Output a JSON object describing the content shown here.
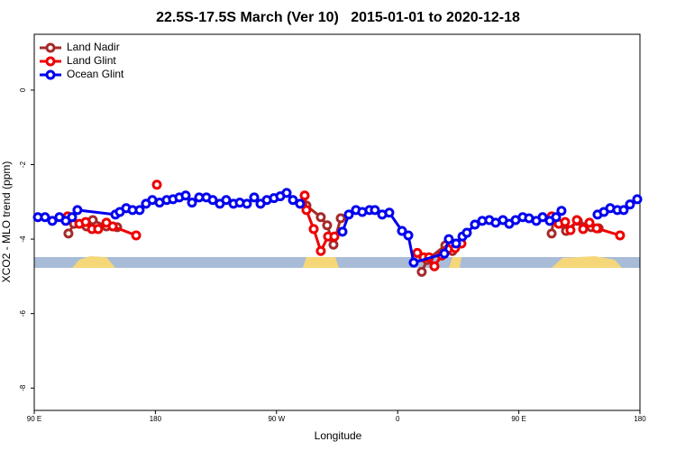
{
  "chart_data": {
    "type": "line",
    "title": "22.5S-17.5S March (Ver 10)   2015-01-01 to 2020-12-18",
    "x_label": "Longitude",
    "y_label": "XCO2 - MLO trend (ppm)",
    "xlim": [
      90,
      540
    ],
    "ylim": [
      -8.6,
      1.5
    ],
    "xticks": [
      {
        "value": 90,
        "label": "90 E"
      },
      180,
      {
        "value": 270,
        "label": "90 W"
      },
      {
        "value": 360,
        "label": "0"
      },
      {
        "value": 450,
        "label": "90 E"
      },
      {
        "value": 540,
        "label": "180"
      }
    ],
    "yticks": [
      0,
      -2,
      -4,
      -6,
      -8
    ],
    "legend": "top-left",
    "series": [
      {
        "name": "Land Nadir",
        "color": "#a52a2a",
        "x": [
          115.4,
          119.5,
          128.8,
          133.5,
          143.6,
          151.6,
          null,
          292.2,
          302.9,
          307.6,
          312.3,
          317.7,
          null,
          377.9,
          381.9,
          395.4,
          400.7,
          null,
          474.4,
          475.7,
          485.1,
          493.8,
          503.8,
          509.3
        ],
        "values": [
          -3.85,
          -3.59,
          -3.66,
          -3.49,
          -3.66,
          -3.68,
          null,
          -3.1,
          -3.41,
          -3.63,
          -4.15,
          -3.44,
          null,
          -4.88,
          -4.56,
          -4.17,
          -4.32,
          null,
          -3.85,
          -3.49,
          -3.78,
          -3.51,
          -3.68,
          -3.71
        ]
      },
      {
        "name": "Land Glint",
        "color": "#ee0000",
        "x": [
          114.8,
          123.5,
          128.2,
          132.9,
          137.5,
          143.6,
          148.3,
          165.7,
          null,
          181.1,
          null,
          290.9,
          292.2,
          297.6,
          302.9,
          308.3,
          313.0,
          null,
          374.6,
          379.3,
          383.3,
          387.3,
          392.7,
          397.3,
          402.7,
          407.4,
          null,
          474.4,
          479.7,
          484.4,
          488.4,
          493.1,
          497.8,
          502.5,
          507.8,
          525.2
        ],
        "values": [
          -3.39,
          -3.59,
          -3.54,
          -3.73,
          -3.73,
          -3.56,
          -3.66,
          -3.9,
          null,
          -2.54,
          null,
          -2.83,
          -3.22,
          -3.73,
          -4.32,
          -3.93,
          -3.93,
          null,
          -4.37,
          -4.49,
          -4.49,
          -4.73,
          -4.44,
          -4.27,
          -4.24,
          -4.12,
          null,
          -3.39,
          -3.59,
          -3.54,
          -3.76,
          -3.49,
          -3.73,
          -3.56,
          -3.71,
          -3.9
        ]
      },
      {
        "name": "Ocean Glint",
        "color": "#0000ee",
        "x": [
          92.7,
          98.0,
          103.4,
          108.7,
          113.4,
          118.1,
          122.1,
          150.3,
          153.6,
          158.3,
          163.0,
          168.3,
          173.0,
          177.7,
          183.1,
          188.4,
          193.1,
          197.8,
          202.5,
          207.2,
          212.5,
          217.9,
          222.6,
          227.9,
          232.6,
          238.0,
          242.7,
          248.0,
          253.4,
          258.1,
          262.8,
          268.1,
          272.8,
          277.5,
          282.2,
          287.5,
          null,
          319.0,
          323.7,
          329.0,
          333.7,
          339.1,
          343.1,
          348.5,
          353.8,
          363.2,
          367.9,
          371.9,
          394.7,
          398.0,
          403.4,
          408.1,
          411.4,
          417.4,
          422.8,
          428.1,
          432.8,
          438.2,
          442.9,
          447.6,
          452.9,
          457.6,
          463.0,
          467.7,
          473.0,
          477.7,
          481.7,
          null,
          508.5,
          513.2,
          517.9,
          523.2,
          527.9,
          532.6,
          538.0
        ],
        "values": [
          -3.41,
          -3.41,
          -3.51,
          -3.41,
          -3.51,
          -3.41,
          -3.22,
          -3.34,
          -3.27,
          -3.17,
          -3.22,
          -3.22,
          -3.05,
          -2.95,
          -3.02,
          -2.95,
          -2.93,
          -2.88,
          -2.83,
          -3.02,
          -2.88,
          -2.88,
          -2.95,
          -3.05,
          -2.95,
          -3.05,
          -3.02,
          -3.05,
          -2.88,
          -3.05,
          -2.95,
          -2.9,
          -2.85,
          -2.76,
          -2.95,
          -3.05,
          null,
          -3.8,
          -3.34,
          -3.22,
          -3.27,
          -3.22,
          -3.22,
          -3.34,
          -3.29,
          -3.78,
          -3.9,
          -4.63,
          -4.39,
          -4.0,
          -4.12,
          -3.93,
          -3.83,
          -3.61,
          -3.51,
          -3.49,
          -3.56,
          -3.49,
          -3.59,
          -3.49,
          -3.41,
          -3.44,
          -3.51,
          -3.41,
          -3.51,
          -3.41,
          -3.24,
          null,
          -3.34,
          -3.27,
          -3.17,
          -3.22,
          -3.22,
          -3.07,
          -2.93
        ]
      }
    ]
  }
}
